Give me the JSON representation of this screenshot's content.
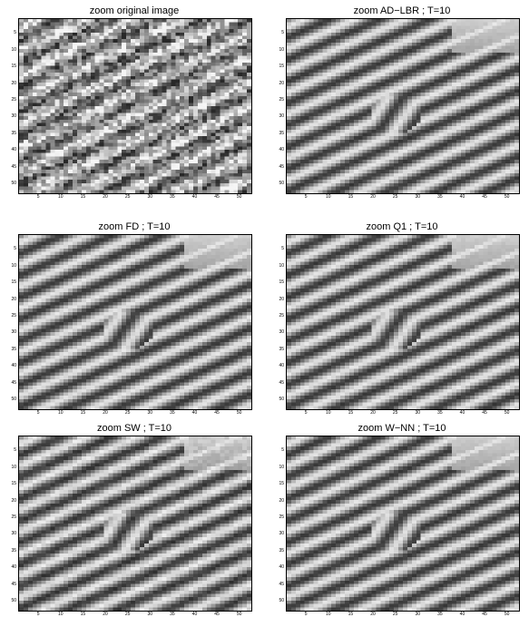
{
  "panels": [
    {
      "title": "zoom original image",
      "kind": "noisy"
    },
    {
      "title": "zoom AD−LBR ; T=10",
      "kind": "smooth"
    },
    {
      "title": "zoom FD ; T=10",
      "kind": "smooth"
    },
    {
      "title": "zoom Q1 ; T=10",
      "kind": "smooth"
    },
    {
      "title": "zoom SW ; T=10",
      "kind": "blocky"
    },
    {
      "title": "zoom W−NN ; T=10",
      "kind": "smooth"
    }
  ],
  "axes": {
    "x_ticks": [
      "5",
      "10",
      "15",
      "20",
      "25",
      "30",
      "35",
      "40",
      "45",
      "50"
    ],
    "y_ticks": [
      "5",
      "10",
      "15",
      "20",
      "25",
      "30",
      "35",
      "40",
      "45",
      "50"
    ],
    "range": [
      0.5,
      52.5
    ]
  }
}
